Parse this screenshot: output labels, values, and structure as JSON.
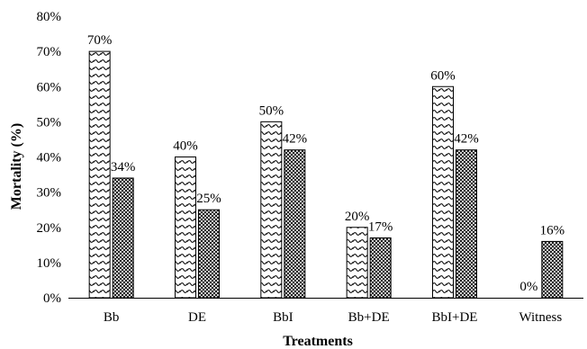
{
  "chart_data": {
    "type": "bar",
    "xlabel": "Treatments",
    "ylabel": "Mortality (%)",
    "ylim": [
      0,
      80
    ],
    "yticks": [
      "0%",
      "10%",
      "20%",
      "30%",
      "40%",
      "50%",
      "60%",
      "70%",
      "80%"
    ],
    "categories": [
      "Bb",
      "DE",
      "BbI",
      "Bb+DE",
      "BbI+DE",
      "Witness"
    ],
    "grid": false,
    "legend": "none",
    "series": [
      {
        "values": [
          70,
          40,
          50,
          20,
          60,
          0
        ],
        "labels": [
          "70%",
          "40%",
          "50%",
          "20%",
          "60%",
          "0%"
        ],
        "pattern": "wave-hatch"
      },
      {
        "values": [
          34,
          25,
          42,
          17,
          42,
          16
        ],
        "labels": [
          "34%",
          "25%",
          "42%",
          "17%",
          "42%",
          "16%"
        ],
        "pattern": "cross-hatch"
      }
    ]
  }
}
